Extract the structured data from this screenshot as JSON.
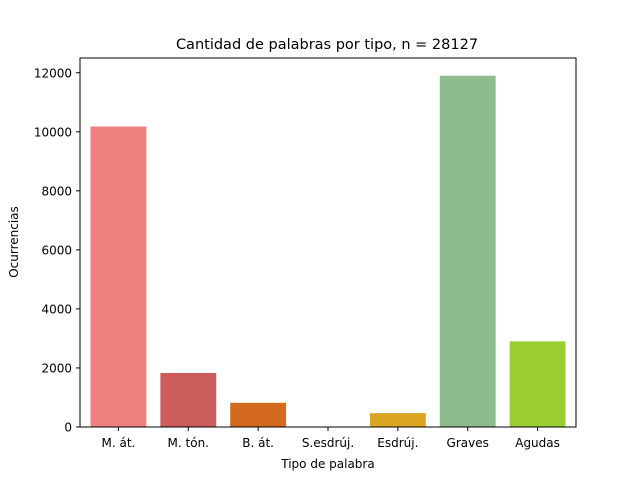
{
  "chart_data": {
    "type": "bar",
    "title": "Cantidad de palabras por tipo, n = 28127",
    "xlabel": "Tipo de palabra",
    "ylabel": "Ocurrencias",
    "categories": [
      "M. át.",
      "M. tón.",
      "B. át.",
      "S.esdrúj.",
      "Esdrúj.",
      "Graves",
      "Agudas"
    ],
    "values": [
      10180,
      1830,
      820,
      0,
      470,
      11900,
      2900
    ],
    "colors": [
      "#f08080",
      "#cd5c5c",
      "#d2691e",
      "#8b4513",
      "#daa520",
      "#8fbc8f",
      "#9acd32"
    ],
    "ylim": [
      0,
      12500
    ],
    "yticks": [
      0,
      2000,
      4000,
      6000,
      8000,
      10000,
      12000
    ],
    "grid": false,
    "legend": "none"
  }
}
